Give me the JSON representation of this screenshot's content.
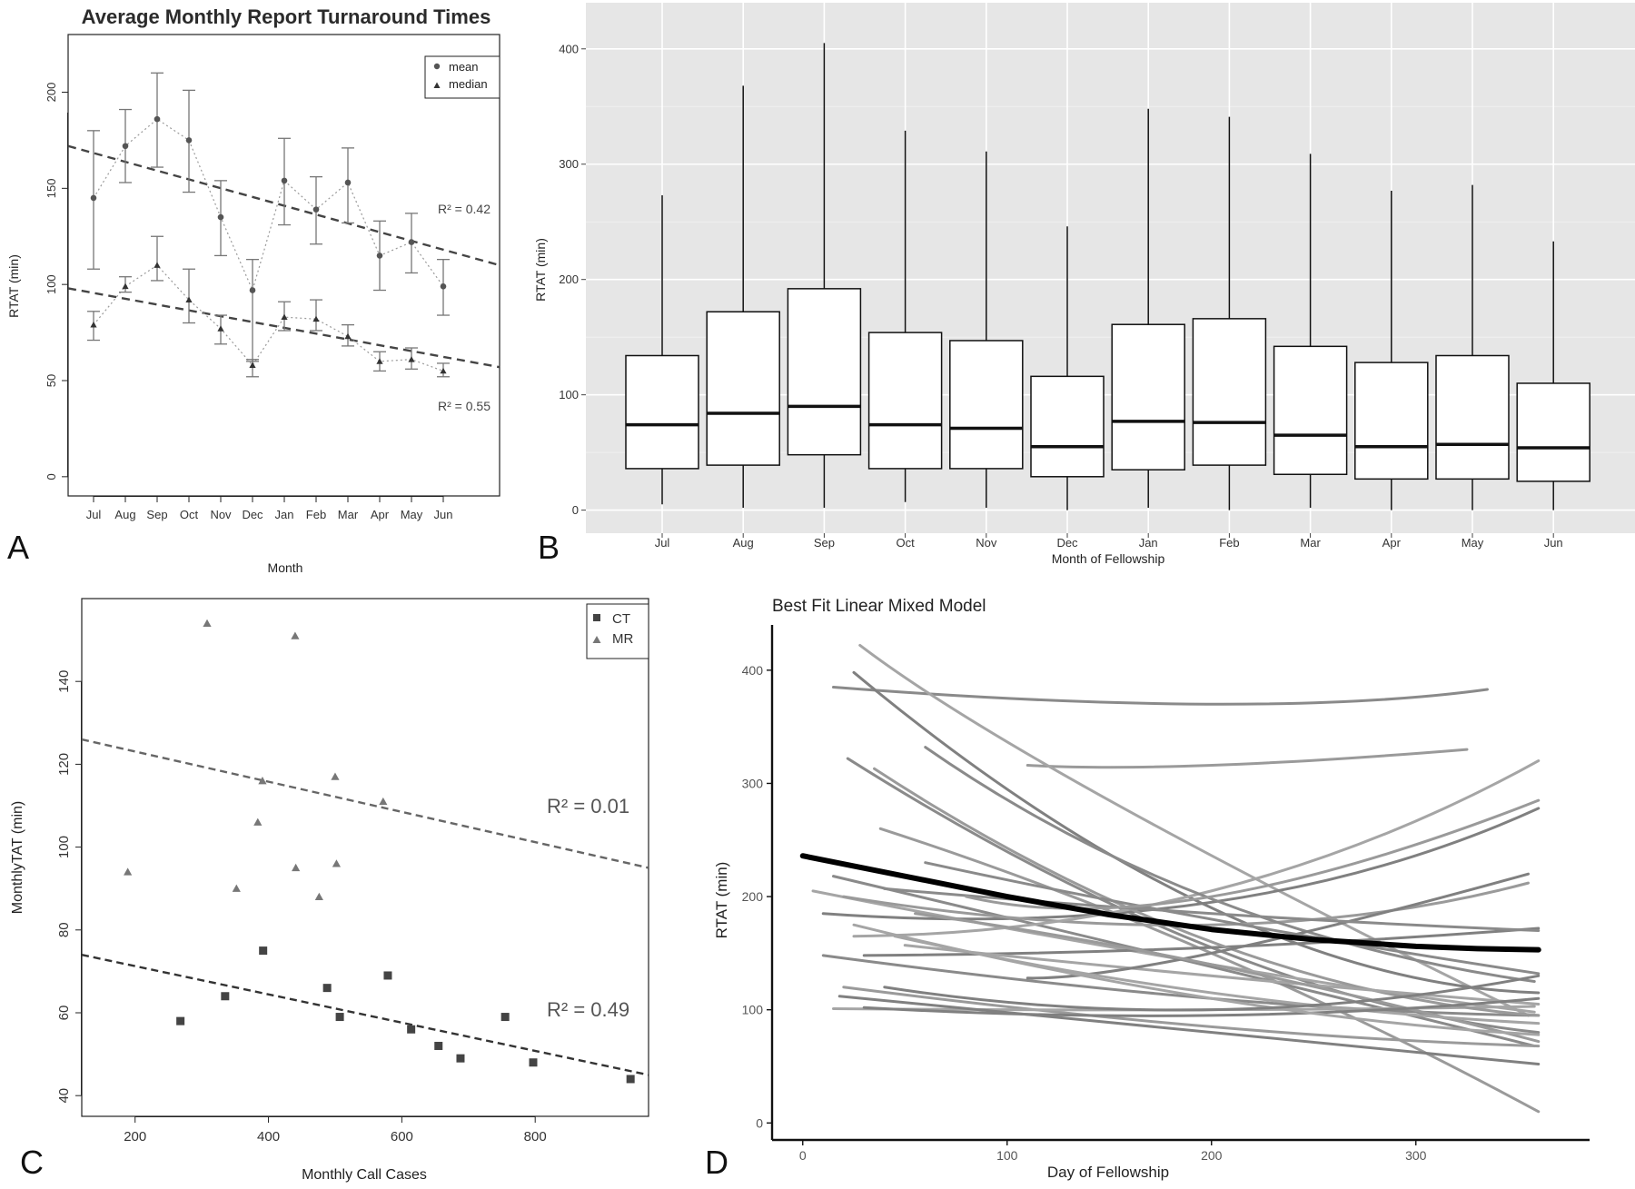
{
  "panels": {
    "A": {
      "label": "A",
      "title": "Average Monthly Report Turnaround Times",
      "xlabel": "Month",
      "ylabel": "RTAT (min)",
      "legend": [
        "mean",
        "median"
      ],
      "r2_mean": "R² = 0.42",
      "r2_median": "R² = 0.55"
    },
    "B": {
      "label": "B",
      "xlabel": "Month of Fellowship",
      "ylabel": "RTAT (min)"
    },
    "C": {
      "label": "C",
      "xlabel": "Monthly Call Cases",
      "ylabel": "MonthlyTAT (min)",
      "legend": [
        "CT",
        "MR"
      ],
      "r2_mr": "R² = 0.01",
      "r2_ct": "R² = 0.49"
    },
    "D": {
      "label": "D",
      "title": "Best Fit Linear Mixed Model",
      "xlabel": "Day of Fellowship",
      "ylabel": "RTAT (min)"
    }
  },
  "chart_data": [
    {
      "panel": "A",
      "type": "line",
      "title": "Average Monthly Report Turnaround Times",
      "xlabel": "Month",
      "ylabel": "RTAT (min)",
      "categories": [
        "Jul",
        "Aug",
        "Sep",
        "Oct",
        "Nov",
        "Dec",
        "Jan",
        "Feb",
        "Mar",
        "Apr",
        "May",
        "Jun"
      ],
      "ylim": [
        -10,
        230
      ],
      "yticks": [
        0,
        50,
        100,
        150,
        200
      ],
      "series": [
        {
          "name": "mean",
          "marker": "circle",
          "values": [
            145,
            172,
            186,
            175,
            135,
            97,
            154,
            139,
            153,
            115,
            122,
            99
          ],
          "lower": [
            108,
            153,
            161,
            148,
            115,
            60,
            131,
            121,
            132,
            97,
            106,
            84
          ],
          "upper": [
            180,
            191,
            210,
            201,
            154,
            113,
            176,
            156,
            171,
            133,
            137,
            113
          ]
        },
        {
          "name": "median",
          "marker": "triangle",
          "values": [
            79,
            99,
            110,
            92,
            77,
            58,
            83,
            82,
            73,
            60,
            61,
            55
          ],
          "lower": [
            71,
            96,
            102,
            80,
            69,
            52,
            76,
            76,
            68,
            55,
            56,
            52
          ],
          "upper": [
            86,
            104,
            125,
            108,
            84,
            61,
            91,
            92,
            79,
            65,
            67,
            59
          ]
        }
      ],
      "trendlines": [
        {
          "series": "mean",
          "r2": 0.42,
          "start": 172,
          "end": 110
        },
        {
          "series": "median",
          "r2": 0.55,
          "start": 98,
          "end": 57
        }
      ],
      "legend_position": "top-right"
    },
    {
      "panel": "B",
      "type": "box",
      "xlabel": "Month of Fellowship",
      "ylabel": "RTAT (min)",
      "categories": [
        "Jul",
        "Aug",
        "Sep",
        "Oct",
        "Nov",
        "Dec",
        "Jan",
        "Feb",
        "Mar",
        "Apr",
        "May",
        "Jun"
      ],
      "ylim": [
        -20,
        440
      ],
      "yticks": [
        0,
        100,
        200,
        300,
        400
      ],
      "grid": true,
      "boxes": [
        {
          "min": 5,
          "q1": 36,
          "median": 74,
          "q3": 134,
          "max": 273
        },
        {
          "min": 2,
          "q1": 39,
          "median": 84,
          "q3": 172,
          "max": 368
        },
        {
          "min": 2,
          "q1": 48,
          "median": 90,
          "q3": 192,
          "max": 405
        },
        {
          "min": 7,
          "q1": 36,
          "median": 74,
          "q3": 154,
          "max": 329
        },
        {
          "min": 2,
          "q1": 36,
          "median": 71,
          "q3": 147,
          "max": 311
        },
        {
          "min": 0,
          "q1": 29,
          "median": 55,
          "q3": 116,
          "max": 246
        },
        {
          "min": 2,
          "q1": 35,
          "median": 77,
          "q3": 161,
          "max": 348
        },
        {
          "min": 0,
          "q1": 39,
          "median": 76,
          "q3": 166,
          "max": 341
        },
        {
          "min": 2,
          "q1": 31,
          "median": 65,
          "q3": 142,
          "max": 309
        },
        {
          "min": 0,
          "q1": 27,
          "median": 55,
          "q3": 128,
          "max": 277
        },
        {
          "min": 0,
          "q1": 27,
          "median": 57,
          "q3": 134,
          "max": 282
        },
        {
          "min": 0,
          "q1": 25,
          "median": 54,
          "q3": 110,
          "max": 233
        }
      ]
    },
    {
      "panel": "C",
      "type": "scatter",
      "xlabel": "Monthly Call Cases",
      "ylabel": "MonthlyTAT (min)",
      "xlim": [
        120,
        970
      ],
      "ylim": [
        35,
        160
      ],
      "xticks": [
        200,
        400,
        600,
        800
      ],
      "yticks": [
        40,
        60,
        80,
        100,
        120,
        140
      ],
      "series": [
        {
          "name": "CT",
          "marker": "square",
          "points": [
            [
              268,
              58
            ],
            [
              335,
              64
            ],
            [
              392,
              75
            ],
            [
              488,
              66
            ],
            [
              507,
              59
            ],
            [
              579,
              69
            ],
            [
              614,
              56
            ],
            [
              655,
              52
            ],
            [
              688,
              49
            ],
            [
              755,
              59
            ],
            [
              797,
              48
            ],
            [
              943,
              44
            ]
          ]
        },
        {
          "name": "MR",
          "marker": "triangle",
          "points": [
            [
              189,
              94
            ],
            [
              308,
              154
            ],
            [
              352,
              90
            ],
            [
              384,
              106
            ],
            [
              391,
              116
            ],
            [
              440,
              151
            ],
            [
              441,
              95
            ],
            [
              476,
              88
            ],
            [
              500,
              117
            ],
            [
              502,
              96
            ],
            [
              572,
              111
            ]
          ]
        }
      ],
      "trendlines": [
        {
          "series": "MR",
          "r2": 0.01,
          "x": [
            120,
            970
          ],
          "y": [
            126,
            95
          ]
        },
        {
          "series": "CT",
          "r2": 0.49,
          "x": [
            120,
            970
          ],
          "y": [
            74,
            45
          ]
        }
      ],
      "legend_position": "top-right"
    },
    {
      "panel": "D",
      "type": "line",
      "title": "Best Fit Linear Mixed Model",
      "xlabel": "Day of Fellowship",
      "ylabel": "RTAT (min)",
      "xlim": [
        -15,
        385
      ],
      "ylim": [
        -15,
        440
      ],
      "xticks": [
        0,
        100,
        200,
        300
      ],
      "yticks": [
        0,
        100,
        200,
        300,
        400
      ],
      "fit": {
        "points": [
          [
            0,
            236
          ],
          [
            50,
            218
          ],
          [
            100,
            200
          ],
          [
            150,
            184
          ],
          [
            200,
            171
          ],
          [
            250,
            162
          ],
          [
            300,
            156
          ],
          [
            330,
            154
          ],
          [
            360,
            153
          ]
        ]
      },
      "individual_curves": [
        [
          [
            15,
            385
          ],
          [
            200,
            370
          ],
          [
            335,
            383
          ]
        ],
        [
          [
            110,
            316
          ],
          [
            200,
            316
          ],
          [
            325,
            330
          ]
        ],
        [
          [
            28,
            422
          ],
          [
            150,
            285
          ],
          [
            355,
            95
          ]
        ],
        [
          [
            25,
            398
          ],
          [
            200,
            190
          ],
          [
            360,
            115
          ]
        ],
        [
          [
            22,
            322
          ],
          [
            200,
            155
          ],
          [
            360,
            80
          ]
        ],
        [
          [
            38,
            260
          ],
          [
            200,
            150
          ],
          [
            360,
            10
          ]
        ],
        [
          [
            5,
            205
          ],
          [
            200,
            140
          ],
          [
            358,
            98
          ]
        ],
        [
          [
            10,
            185
          ],
          [
            200,
            195
          ],
          [
            360,
            278
          ]
        ],
        [
          [
            15,
            218
          ],
          [
            200,
            138
          ],
          [
            358,
            68
          ]
        ],
        [
          [
            20,
            200
          ],
          [
            200,
            175
          ],
          [
            355,
            212
          ]
        ],
        [
          [
            25,
            165
          ],
          [
            200,
            205
          ],
          [
            360,
            320
          ]
        ],
        [
          [
            30,
            148
          ],
          [
            200,
            155
          ],
          [
            360,
            172
          ]
        ],
        [
          [
            10,
            148
          ],
          [
            200,
            110
          ],
          [
            360,
            95
          ]
        ],
        [
          [
            20,
            120
          ],
          [
            200,
            85
          ],
          [
            360,
            68
          ]
        ],
        [
          [
            15,
            101
          ],
          [
            200,
            100
          ],
          [
            358,
            103
          ]
        ],
        [
          [
            18,
            112
          ],
          [
            200,
            80
          ],
          [
            360,
            52
          ]
        ],
        [
          [
            60,
            332
          ],
          [
            200,
            198
          ],
          [
            358,
            125
          ]
        ],
        [
          [
            35,
            313
          ],
          [
            200,
            160
          ],
          [
            360,
            95
          ]
        ],
        [
          [
            50,
            157
          ],
          [
            200,
            130
          ],
          [
            360,
            105
          ]
        ],
        [
          [
            110,
            128
          ],
          [
            200,
            150
          ],
          [
            355,
            220
          ]
        ],
        [
          [
            40,
            207
          ],
          [
            200,
            185
          ],
          [
            360,
            170
          ]
        ],
        [
          [
            55,
            185
          ],
          [
            200,
            140
          ],
          [
            360,
            72
          ]
        ],
        [
          [
            45,
            165
          ],
          [
            200,
            115
          ],
          [
            360,
            88
          ]
        ],
        [
          [
            30,
            102
          ],
          [
            200,
            95
          ],
          [
            360,
            110
          ]
        ],
        [
          [
            60,
            230
          ],
          [
            200,
            180
          ],
          [
            360,
            132
          ]
        ],
        [
          [
            80,
            200
          ],
          [
            200,
            200
          ],
          [
            360,
            285
          ]
        ],
        [
          [
            25,
            175
          ],
          [
            200,
            110
          ],
          [
            360,
            78
          ]
        ],
        [
          [
            40,
            120
          ],
          [
            200,
            100
          ],
          [
            360,
            130
          ]
        ]
      ]
    }
  ]
}
